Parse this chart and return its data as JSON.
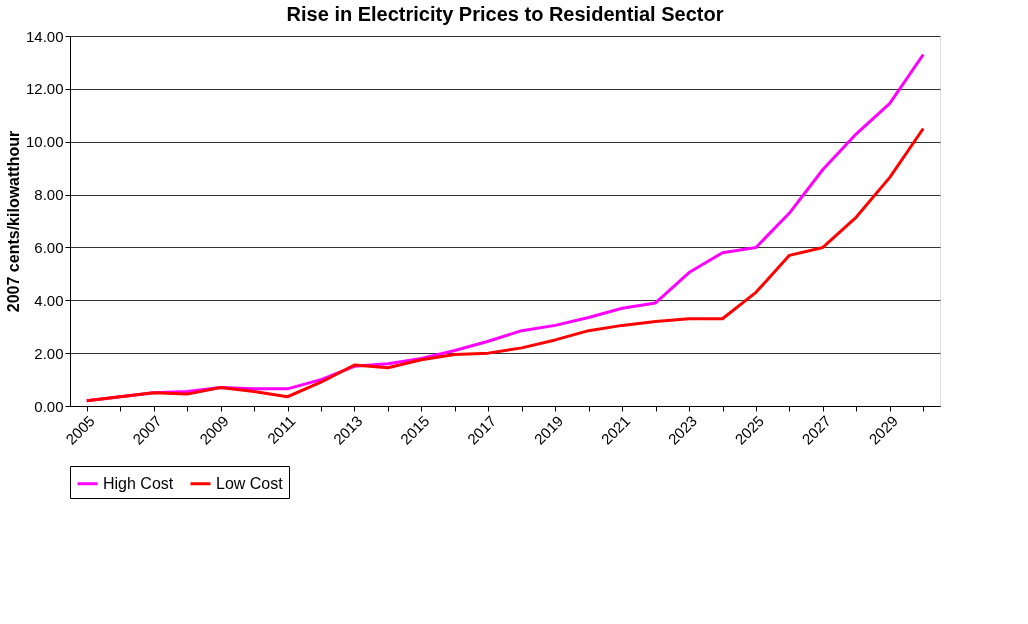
{
  "chart_data": {
    "type": "line",
    "title": "Rise in Electricity Prices to Residential Sector",
    "ylabel": "2007 cents/kilowatthour",
    "categories": [
      "2005",
      null,
      "2007",
      null,
      "2009",
      null,
      "2011",
      null,
      "2013",
      null,
      "2015",
      null,
      "2017",
      null,
      "2019",
      null,
      "2021",
      null,
      "2023",
      null,
      "2025",
      null,
      "2027",
      null,
      "2029",
      null
    ],
    "series": [
      {
        "name": "High Cost",
        "color": "#ff00ff",
        "values": [
          0.2,
          0.35,
          0.5,
          0.55,
          0.7,
          0.65,
          0.65,
          1.0,
          1.5,
          1.6,
          1.8,
          2.1,
          2.45,
          2.85,
          3.05,
          3.35,
          3.7,
          3.9,
          5.05,
          5.8,
          6.0,
          7.3,
          8.95,
          10.3,
          11.45,
          13.3
        ]
      },
      {
        "name": "Low Cost",
        "color": "#ff0000",
        "values": [
          0.2,
          0.35,
          0.5,
          0.45,
          0.7,
          0.55,
          0.35,
          0.9,
          1.55,
          1.45,
          1.75,
          1.95,
          2.0,
          2.2,
          2.5,
          2.85,
          3.05,
          3.2,
          3.3,
          3.3,
          4.3,
          5.7,
          6.0,
          7.15,
          8.65,
          10.5
        ]
      }
    ],
    "ylim": [
      0,
      14
    ],
    "yticks": [
      {
        "value": 0,
        "label": "0.00"
      },
      {
        "value": 2,
        "label": "2.00"
      },
      {
        "value": 4,
        "label": "4.00"
      },
      {
        "value": 6,
        "label": "6.00"
      },
      {
        "value": 8,
        "label": "8.00"
      },
      {
        "value": 10,
        "label": "10.00"
      },
      {
        "value": 12,
        "label": "12.00"
      },
      {
        "value": 14,
        "label": "14.00"
      }
    ],
    "grid": "y",
    "legend": "bottom",
    "marker": "none",
    "line_style": "solid"
  }
}
